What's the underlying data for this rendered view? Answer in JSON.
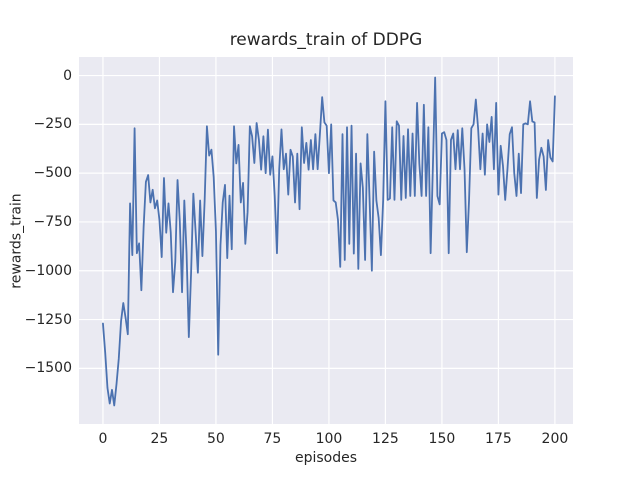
{
  "figure": {
    "background": "#ffffff",
    "text_color": "#262626"
  },
  "chart_data": {
    "type": "line",
    "title": "rewards_train of DDPG",
    "xlabel": "episodes",
    "ylabel": "rewards_train",
    "legend": "none",
    "grid": true,
    "axes_bg": "#eaeaf2",
    "grid_color": "#ffffff",
    "line_color": "#4c72b0",
    "line_width": 1.8,
    "xlim": [
      -10.6,
      208
    ],
    "ylim": [
      -1785,
      95
    ],
    "x_ticks": [
      0,
      25,
      50,
      75,
      100,
      125,
      150,
      175,
      200
    ],
    "x_tick_labels": [
      "0",
      "25",
      "50",
      "75",
      "100",
      "125",
      "150",
      "175",
      "200"
    ],
    "y_ticks": [
      0,
      -250,
      -500,
      -750,
      -1000,
      -1250,
      -1500
    ],
    "y_tick_labels": [
      "0",
      "−250",
      "−500",
      "−750",
      "−1000",
      "−1250",
      "−1500"
    ],
    "series": [
      {
        "name": "rewards_train",
        "x_is_index": true,
        "x_start": 0,
        "x_step": 1,
        "values": [
          -1270,
          -1420,
          -1600,
          -1680,
          -1610,
          -1690,
          -1580,
          -1450,
          -1260,
          -1165,
          -1240,
          -1325,
          -655,
          -920,
          -270,
          -910,
          -860,
          -1100,
          -775,
          -545,
          -510,
          -650,
          -585,
          -680,
          -640,
          -740,
          -930,
          -525,
          -805,
          -655,
          -805,
          -1110,
          -955,
          -535,
          -745,
          -1110,
          -640,
          -910,
          -1340,
          -1010,
          -605,
          -800,
          -1010,
          -640,
          -925,
          -640,
          -260,
          -410,
          -380,
          -520,
          -800,
          -1430,
          -870,
          -650,
          -560,
          -935,
          -615,
          -890,
          -260,
          -450,
          -355,
          -650,
          -550,
          -862,
          -700,
          -260,
          -311,
          -448,
          -243,
          -328,
          -482,
          -311,
          -500,
          -277,
          -508,
          -414,
          -616,
          -910,
          -480,
          -276,
          -480,
          -400,
          -610,
          -380,
          -415,
          -650,
          -400,
          -685,
          -265,
          -448,
          -345,
          -482,
          -330,
          -480,
          -300,
          -480,
          -300,
          -111,
          -240,
          -257,
          -500,
          -250,
          -640,
          -650,
          -740,
          -980,
          -300,
          -945,
          -265,
          -862,
          -257,
          -912,
          -400,
          -990,
          -450,
          -575,
          -945,
          -300,
          -640,
          -1000,
          -390,
          -640,
          -730,
          -920,
          -637,
          -132,
          -637,
          -630,
          -265,
          -637,
          -234,
          -257,
          -637,
          -310,
          -627,
          -275,
          -617,
          -297,
          -617,
          -140,
          -450,
          -617,
          -150,
          -617,
          -265,
          -910,
          -465,
          -10,
          -617,
          -660,
          -297,
          -290,
          -330,
          -910,
          -330,
          -297,
          -480,
          -280,
          -480,
          -270,
          -480,
          -905,
          -637,
          -270,
          -250,
          -123,
          -270,
          -480,
          -297,
          -508,
          -250,
          -340,
          -212,
          -480,
          -140,
          -610,
          -360,
          -462,
          -637,
          -480,
          -300,
          -265,
          -500,
          -617,
          -400,
          -602,
          -250,
          -245,
          -250,
          -132,
          -235,
          -240,
          -627,
          -430,
          -370,
          -415,
          -586,
          -330,
          -420,
          -440,
          -106
        ]
      }
    ]
  }
}
